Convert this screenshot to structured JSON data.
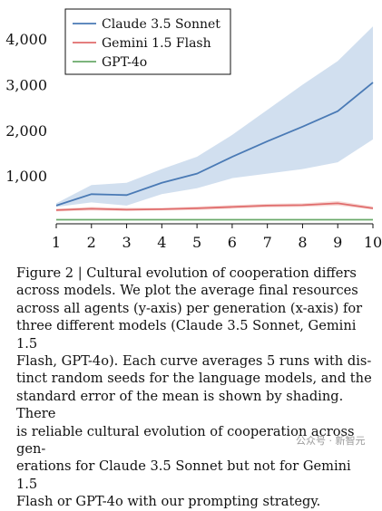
{
  "chart_data": {
    "type": "line",
    "x": [
      1,
      2,
      3,
      4,
      5,
      6,
      7,
      8,
      9,
      10
    ],
    "xticks": [
      "1",
      "2",
      "3",
      "4",
      "5",
      "6",
      "7",
      "8",
      "9",
      "10"
    ],
    "yticks": [
      {
        "v": 1000,
        "label": "1,000"
      },
      {
        "v": 2000,
        "label": "2,000"
      },
      {
        "v": 3000,
        "label": "3,000"
      },
      {
        "v": 4000,
        "label": "4,000"
      }
    ],
    "xlim": [
      1,
      10
    ],
    "ylim": [
      -50,
      4700
    ],
    "grid": false,
    "legend_position": "top-left",
    "series": [
      {
        "name": "Claude 3.5 Sonnet",
        "color": "#4a7ab5",
        "band_color": "#c9d9ec",
        "values": [
          350,
          600,
          580,
          850,
          1050,
          1420,
          1760,
          2080,
          2420,
          3050
        ],
        "lower": [
          320,
          420,
          350,
          600,
          730,
          950,
          1050,
          1150,
          1300,
          1800
        ],
        "upper": [
          400,
          800,
          850,
          1150,
          1420,
          1900,
          2450,
          3000,
          3520,
          4280
        ]
      },
      {
        "name": "Gemini 1.5 Flash",
        "color": "#e06c6c",
        "band_color": "#f6d2cf",
        "values": [
          250,
          280,
          260,
          270,
          290,
          320,
          350,
          360,
          400,
          290
        ],
        "lower": [
          220,
          240,
          230,
          240,
          250,
          280,
          310,
          320,
          350,
          260
        ],
        "upper": [
          280,
          320,
          300,
          300,
          330,
          360,
          390,
          400,
          450,
          330
        ]
      },
      {
        "name": "GPT-4o",
        "color": "#6aaa6a",
        "band_color": "#cfe8cf",
        "values": [
          40,
          40,
          40,
          40,
          40,
          40,
          40,
          40,
          40,
          40
        ],
        "lower": [
          30,
          30,
          30,
          30,
          30,
          30,
          30,
          30,
          30,
          30
        ],
        "upper": [
          50,
          50,
          50,
          50,
          50,
          50,
          50,
          50,
          50,
          50
        ]
      }
    ]
  },
  "caption": {
    "lines": [
      "Figure 2 | Cultural evolution of cooperation differs",
      "across models.  We plot the average final resources",
      "across all agents (y-axis) per generation (x-axis) for",
      "three different models (Claude 3.5 Sonnet, Gemini 1.5",
      "Flash, GPT-4o). Each curve averages 5 runs with dis-",
      "tinct random seeds for the language models, and the",
      "standard error of the mean is shown by shading. There",
      "is reliable cultural evolution of cooperation across gen-",
      "erations for Claude 3.5 Sonnet but not for Gemini 1.5",
      "Flash or GPT-4o with our prompting strategy."
    ]
  },
  "watermark": "公众号 · 新智元"
}
